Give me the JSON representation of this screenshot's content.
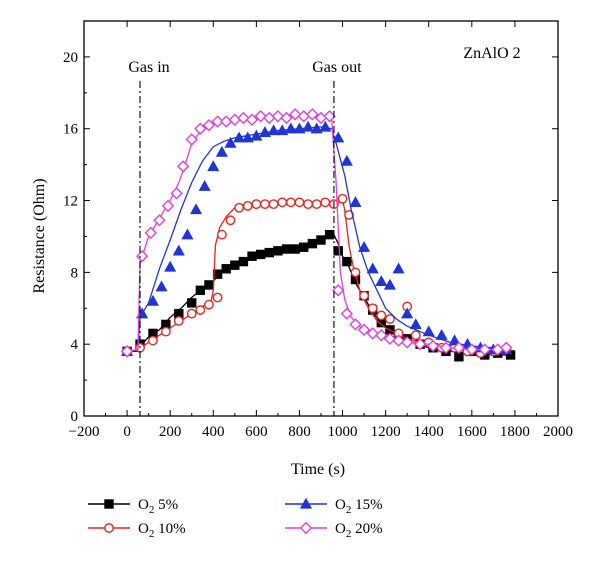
{
  "chart_data": {
    "type": "line",
    "xlabel": "Time (s)",
    "ylabel": "Resistance (Ohm)",
    "xlim": [
      -200,
      2000
    ],
    "ylim": [
      0,
      22
    ],
    "x_ticks": [
      -200,
      0,
      200,
      400,
      600,
      800,
      1000,
      1200,
      1400,
      1600,
      1800,
      2000
    ],
    "x_tick_labels": [
      "−200",
      "0",
      "200",
      "400",
      "600",
      "800",
      "1000",
      "1200",
      "1400",
      "1600",
      "1800",
      "2000"
    ],
    "y_ticks": [
      0,
      4,
      8,
      12,
      16,
      20
    ],
    "y_tick_labels": [
      "0",
      "4",
      "8",
      "12",
      "16",
      "20"
    ],
    "sample_label": "ZnAlO 2",
    "annotations": [
      {
        "label": "Gas in",
        "x": 60
      },
      {
        "label": "Gas out",
        "x": 960
      }
    ],
    "legend_position": "bottom",
    "series": [
      {
        "name": "O₂ 5%",
        "name_main": "O",
        "name_sub": "2",
        "name_rest": " 5%",
        "color": "#000000",
        "marker": "square-filled",
        "points": [
          [
            -10,
            3.5
          ],
          [
            20,
            3.6
          ],
          [
            50,
            3.6
          ],
          [
            60,
            3.9
          ],
          [
            100,
            4.4
          ],
          [
            150,
            4.8
          ],
          [
            200,
            5.5
          ],
          [
            250,
            6.0
          ],
          [
            300,
            6.6
          ],
          [
            350,
            7.1
          ],
          [
            400,
            7.5
          ],
          [
            420,
            7.8
          ],
          [
            450,
            8.1
          ],
          [
            500,
            8.4
          ],
          [
            550,
            8.6
          ],
          [
            600,
            8.9
          ],
          [
            650,
            9.0
          ],
          [
            700,
            9.2
          ],
          [
            750,
            9.3
          ],
          [
            800,
            9.4
          ],
          [
            850,
            9.6
          ],
          [
            900,
            9.8
          ],
          [
            940,
            10.0
          ],
          [
            960,
            10.1
          ],
          [
            980,
            9.6
          ],
          [
            1000,
            8.9
          ],
          [
            1030,
            8.3
          ],
          [
            1060,
            7.4
          ],
          [
            1100,
            6.6
          ],
          [
            1150,
            5.6
          ],
          [
            1200,
            5.0
          ],
          [
            1250,
            4.6
          ],
          [
            1300,
            4.2
          ],
          [
            1400,
            3.8
          ],
          [
            1500,
            3.6
          ],
          [
            1600,
            3.5
          ],
          [
            1700,
            3.4
          ],
          [
            1780,
            3.4
          ]
        ],
        "marker_points": [
          [
            0,
            3.6
          ],
          [
            60,
            4.0
          ],
          [
            120,
            4.6
          ],
          [
            180,
            5.1
          ],
          [
            240,
            5.7
          ],
          [
            300,
            6.3
          ],
          [
            340,
            7.0
          ],
          [
            380,
            7.3
          ],
          [
            420,
            7.9
          ],
          [
            460,
            8.2
          ],
          [
            500,
            8.4
          ],
          [
            540,
            8.6
          ],
          [
            580,
            8.9
          ],
          [
            620,
            9.0
          ],
          [
            660,
            9.1
          ],
          [
            700,
            9.2
          ],
          [
            740,
            9.3
          ],
          [
            780,
            9.3
          ],
          [
            820,
            9.4
          ],
          [
            860,
            9.6
          ],
          [
            900,
            9.8
          ],
          [
            940,
            10.1
          ],
          [
            980,
            9.2
          ],
          [
            1020,
            8.6
          ],
          [
            1060,
            7.6
          ],
          [
            1100,
            6.7
          ],
          [
            1140,
            5.9
          ],
          [
            1180,
            5.2
          ],
          [
            1220,
            4.8
          ],
          [
            1260,
            4.4
          ],
          [
            1300,
            4.3
          ],
          [
            1360,
            4.0
          ],
          [
            1420,
            3.8
          ],
          [
            1480,
            3.6
          ],
          [
            1540,
            3.3
          ],
          [
            1600,
            3.6
          ],
          [
            1660,
            3.4
          ],
          [
            1720,
            3.5
          ],
          [
            1780,
            3.4
          ]
        ]
      },
      {
        "name": "O₂ 10%",
        "name_main": "O",
        "name_sub": "2",
        "name_rest": " 10%",
        "color": "#e8231c",
        "marker": "circle-open",
        "points": [
          [
            -10,
            3.6
          ],
          [
            50,
            3.7
          ],
          [
            100,
            4.1
          ],
          [
            150,
            4.5
          ],
          [
            200,
            4.9
          ],
          [
            250,
            5.3
          ],
          [
            300,
            5.7
          ],
          [
            350,
            6.1
          ],
          [
            390,
            6.4
          ],
          [
            400,
            7.0
          ],
          [
            410,
            9.5
          ],
          [
            430,
            10.5
          ],
          [
            460,
            11.1
          ],
          [
            500,
            11.6
          ],
          [
            550,
            11.8
          ],
          [
            600,
            11.8
          ],
          [
            700,
            11.9
          ],
          [
            800,
            11.9
          ],
          [
            900,
            11.9
          ],
          [
            940,
            11.8
          ],
          [
            960,
            11.7
          ],
          [
            980,
            11.9
          ],
          [
            1000,
            12.0
          ],
          [
            1010,
            11.5
          ],
          [
            1030,
            9.5
          ],
          [
            1050,
            8.3
          ],
          [
            1080,
            7.0
          ],
          [
            1120,
            6.0
          ],
          [
            1160,
            5.3
          ],
          [
            1200,
            4.9
          ],
          [
            1250,
            4.6
          ],
          [
            1300,
            4.3
          ],
          [
            1400,
            4.0
          ],
          [
            1500,
            3.8
          ],
          [
            1600,
            3.6
          ],
          [
            1700,
            3.5
          ],
          [
            1780,
            3.6
          ]
        ],
        "marker_points": [
          [
            0,
            3.6
          ],
          [
            60,
            3.8
          ],
          [
            120,
            4.2
          ],
          [
            180,
            4.7
          ],
          [
            240,
            5.3
          ],
          [
            300,
            5.7
          ],
          [
            340,
            5.9
          ],
          [
            380,
            6.2
          ],
          [
            420,
            6.6
          ],
          [
            440,
            10.1
          ],
          [
            480,
            10.9
          ],
          [
            520,
            11.6
          ],
          [
            560,
            11.7
          ],
          [
            600,
            11.8
          ],
          [
            640,
            11.8
          ],
          [
            680,
            11.8
          ],
          [
            720,
            11.9
          ],
          [
            760,
            11.9
          ],
          [
            800,
            11.9
          ],
          [
            840,
            11.8
          ],
          [
            880,
            11.8
          ],
          [
            920,
            11.9
          ],
          [
            960,
            11.8
          ],
          [
            1000,
            12.1
          ],
          [
            1030,
            11.2
          ],
          [
            1060,
            8.0
          ],
          [
            1100,
            6.7
          ],
          [
            1140,
            6.0
          ],
          [
            1180,
            5.6
          ],
          [
            1220,
            5.4
          ],
          [
            1260,
            4.6
          ],
          [
            1300,
            6.1
          ],
          [
            1340,
            4.5
          ],
          [
            1400,
            4.1
          ],
          [
            1460,
            3.8
          ],
          [
            1520,
            3.8
          ],
          [
            1580,
            3.6
          ],
          [
            1640,
            3.5
          ],
          [
            1700,
            3.6
          ],
          [
            1760,
            3.7
          ]
        ]
      },
      {
        "name": "O₂ 15%",
        "name_main": "O",
        "name_sub": "2",
        "name_rest": " 15%",
        "color": "#1f35d4",
        "marker": "triangle-filled",
        "points": [
          [
            -10,
            3.6
          ],
          [
            50,
            3.7
          ],
          [
            60,
            5.5
          ],
          [
            100,
            6.3
          ],
          [
            150,
            8.2
          ],
          [
            200,
            9.8
          ],
          [
            250,
            11.5
          ],
          [
            300,
            13.0
          ],
          [
            350,
            14.2
          ],
          [
            400,
            15.0
          ],
          [
            450,
            15.3
          ],
          [
            500,
            15.5
          ],
          [
            600,
            15.7
          ],
          [
            700,
            15.9
          ],
          [
            800,
            16.0
          ],
          [
            900,
            16.1
          ],
          [
            950,
            16.0
          ],
          [
            970,
            15.2
          ],
          [
            990,
            14.3
          ],
          [
            1010,
            13.4
          ],
          [
            1040,
            11.5
          ],
          [
            1080,
            9.4
          ],
          [
            1120,
            8.0
          ],
          [
            1160,
            7.0
          ],
          [
            1200,
            6.0
          ],
          [
            1250,
            5.4
          ],
          [
            1300,
            5.0
          ],
          [
            1400,
            4.5
          ],
          [
            1500,
            4.1
          ],
          [
            1600,
            3.9
          ],
          [
            1700,
            3.8
          ],
          [
            1780,
            3.7
          ]
        ],
        "marker_points": [
          [
            0,
            3.6
          ],
          [
            70,
            5.7
          ],
          [
            120,
            6.4
          ],
          [
            160,
            7.2
          ],
          [
            200,
            8.3
          ],
          [
            240,
            9.2
          ],
          [
            280,
            10.1
          ],
          [
            320,
            11.5
          ],
          [
            360,
            12.8
          ],
          [
            400,
            13.9
          ],
          [
            440,
            14.7
          ],
          [
            480,
            15.2
          ],
          [
            520,
            15.5
          ],
          [
            560,
            15.5
          ],
          [
            600,
            15.6
          ],
          [
            640,
            15.8
          ],
          [
            680,
            15.9
          ],
          [
            720,
            15.9
          ],
          [
            760,
            16.0
          ],
          [
            800,
            16.0
          ],
          [
            840,
            16.1
          ],
          [
            880,
            16.0
          ],
          [
            920,
            16.1
          ],
          [
            980,
            15.5
          ],
          [
            1020,
            14.2
          ],
          [
            1060,
            11.9
          ],
          [
            1100,
            9.4
          ],
          [
            1140,
            8.2
          ],
          [
            1180,
            7.5
          ],
          [
            1220,
            7.3
          ],
          [
            1260,
            8.2
          ],
          [
            1300,
            5.7
          ],
          [
            1340,
            5.1
          ],
          [
            1400,
            4.7
          ],
          [
            1460,
            4.5
          ],
          [
            1520,
            4.2
          ],
          [
            1580,
            4.0
          ],
          [
            1640,
            3.8
          ],
          [
            1700,
            3.7
          ],
          [
            1760,
            3.7
          ]
        ]
      },
      {
        "name": "O₂ 20%",
        "name_main": "O",
        "name_sub": "2",
        "name_rest": " 20%",
        "color": "#e43ce0",
        "marker": "diamond-open",
        "points": [
          [
            -10,
            3.6
          ],
          [
            50,
            3.7
          ],
          [
            60,
            8.5
          ],
          [
            100,
            10.0
          ],
          [
            150,
            11.0
          ],
          [
            200,
            12.0
          ],
          [
            240,
            13.0
          ],
          [
            270,
            14.0
          ],
          [
            300,
            15.2
          ],
          [
            350,
            16.0
          ],
          [
            400,
            16.3
          ],
          [
            500,
            16.5
          ],
          [
            600,
            16.6
          ],
          [
            700,
            16.6
          ],
          [
            800,
            16.7
          ],
          [
            900,
            16.7
          ],
          [
            950,
            16.5
          ],
          [
            970,
            13.0
          ],
          [
            990,
            8.0
          ],
          [
            1010,
            6.5
          ],
          [
            1040,
            5.5
          ],
          [
            1080,
            5.0
          ],
          [
            1120,
            4.7
          ],
          [
            1200,
            4.4
          ],
          [
            1300,
            4.1
          ],
          [
            1400,
            4.0
          ],
          [
            1500,
            3.8
          ],
          [
            1600,
            3.7
          ],
          [
            1700,
            3.7
          ],
          [
            1780,
            3.7
          ]
        ],
        "marker_points": [
          [
            0,
            3.6
          ],
          [
            70,
            8.9
          ],
          [
            110,
            10.2
          ],
          [
            150,
            10.9
          ],
          [
            190,
            11.7
          ],
          [
            230,
            12.4
          ],
          [
            260,
            13.9
          ],
          [
            300,
            15.4
          ],
          [
            340,
            16.0
          ],
          [
            380,
            16.2
          ],
          [
            420,
            16.4
          ],
          [
            460,
            16.4
          ],
          [
            500,
            16.5
          ],
          [
            540,
            16.6
          ],
          [
            580,
            16.5
          ],
          [
            620,
            16.7
          ],
          [
            660,
            16.6
          ],
          [
            700,
            16.7
          ],
          [
            740,
            16.6
          ],
          [
            780,
            16.8
          ],
          [
            820,
            16.7
          ],
          [
            860,
            16.8
          ],
          [
            900,
            16.6
          ],
          [
            940,
            16.7
          ],
          [
            980,
            7.0
          ],
          [
            1020,
            5.7
          ],
          [
            1060,
            5.1
          ],
          [
            1100,
            4.8
          ],
          [
            1140,
            4.6
          ],
          [
            1180,
            4.5
          ],
          [
            1220,
            4.3
          ],
          [
            1260,
            4.2
          ],
          [
            1300,
            4.1
          ],
          [
            1360,
            4.0
          ],
          [
            1420,
            3.9
          ],
          [
            1480,
            3.8
          ],
          [
            1540,
            3.8
          ],
          [
            1600,
            3.7
          ],
          [
            1660,
            3.7
          ],
          [
            1720,
            3.7
          ],
          [
            1760,
            3.8
          ]
        ]
      }
    ]
  }
}
